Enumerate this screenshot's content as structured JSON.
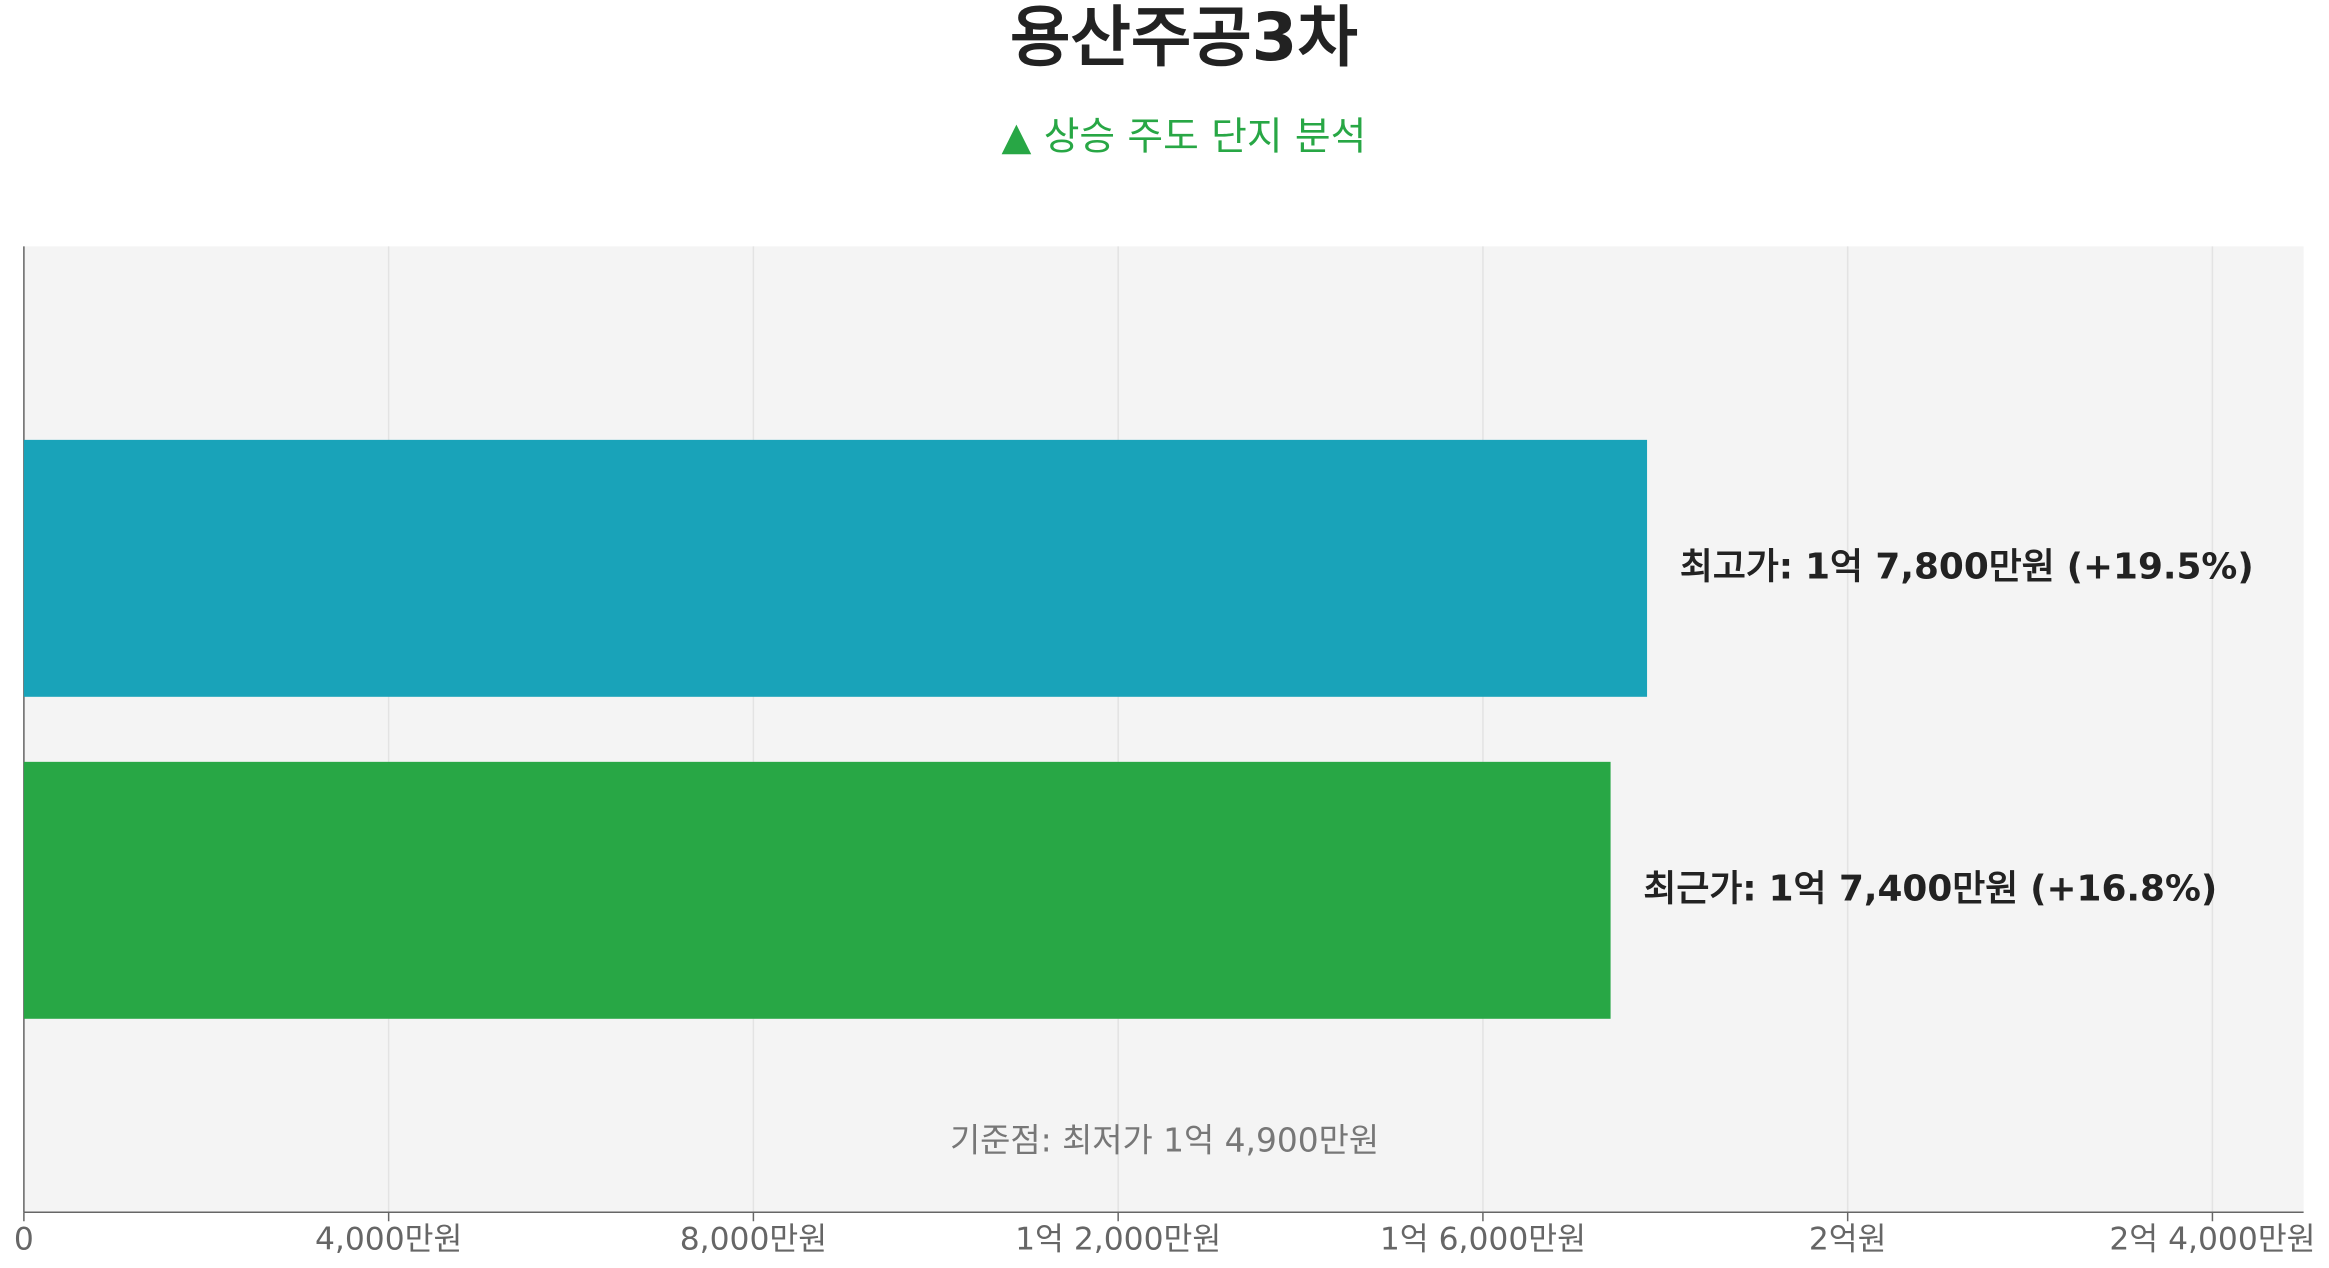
{
  "chart_data": {
    "type": "barh",
    "title": "용산주공3차",
    "subtitle": "▲ 상승 주도 단지 분석",
    "categories": [
      "최고가:",
      "최근가:"
    ],
    "values": [
      17800,
      17400
    ],
    "value_labels": [
      "1억 7,800만원",
      "1억 7,400만원"
    ],
    "change_labels": [
      "(+19.5%)",
      "(+16.8%)"
    ],
    "colors": [
      "#19a3b9",
      "#28a745"
    ],
    "annotation": "기준점: 최저가 1억 4,900만원",
    "xlim": [
      0,
      25000
    ],
    "xticks": [
      0,
      {
        "value": 4000,
        "label": "4,000만원"
      },
      {
        "value": 8000,
        "label": "8,000만원"
      },
      {
        "value": 12000,
        "label": "1억 2,000만원"
      },
      {
        "value": 16000,
        "label": "1억 6,000만원"
      },
      {
        "value": 20000,
        "label": "2억원"
      },
      {
        "value": 24000,
        "label": "2억 4,000만원"
      }
    ],
    "grid": true
  }
}
